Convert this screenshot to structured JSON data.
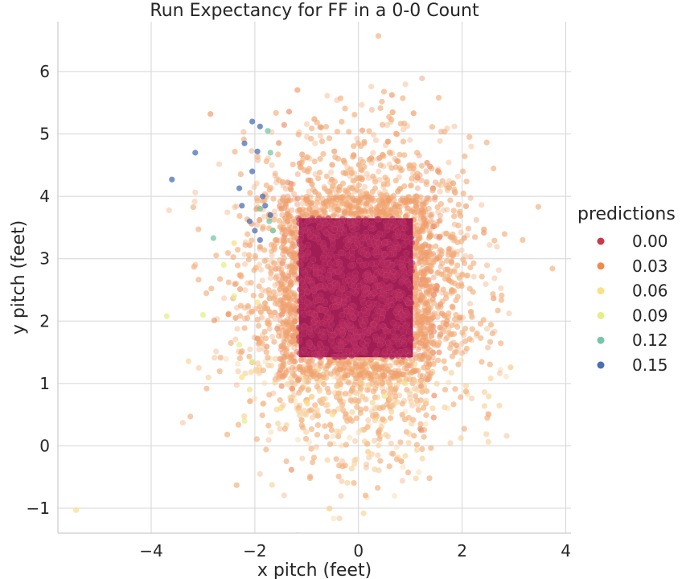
{
  "chart_data": {
    "type": "scatter",
    "title": "Run Expectancy for FF in a 0-0 Count",
    "xlabel": "x pitch (feet)",
    "ylabel": "y pitch (feet)",
    "xlim": [
      -5.8,
      4.1
    ],
    "ylim": [
      -1.4,
      6.8
    ],
    "xticks": [
      -4,
      -2,
      0,
      2,
      4
    ],
    "yticks": [
      -1,
      0,
      1,
      2,
      3,
      4,
      5,
      6
    ],
    "grid": true,
    "legend": {
      "title": "predictions",
      "placement": "right",
      "entries": [
        {
          "label": "0.00",
          "color": "#c9394a"
        },
        {
          "label": "0.03",
          "color": "#f08a4b"
        },
        {
          "label": "0.06",
          "color": "#fbe08a"
        },
        {
          "label": "0.09",
          "color": "#e3ef8a"
        },
        {
          "label": "0.12",
          "color": "#73c8a6"
        },
        {
          "label": "0.15",
          "color": "#4a6fb5"
        }
      ]
    },
    "zone_region": {
      "x": [
        -1.15,
        1.05
      ],
      "y": [
        1.42,
        3.65
      ],
      "color": "#a0164f",
      "prediction": 0.0
    },
    "cloud": {
      "x_center": 0.0,
      "y_center": 2.45,
      "x_sd": 1.05,
      "y_sd": 1.15,
      "color": "#f3b07f"
    },
    "series": [
      {
        "name": "0.15",
        "color": "#4a6fb5",
        "points": [
          [
            -3.6,
            4.27
          ],
          [
            -3.15,
            4.7
          ],
          [
            -2.05,
            5.2
          ],
          [
            -1.9,
            5.12
          ],
          [
            -2.2,
            4.85
          ],
          [
            -2.3,
            4.13
          ],
          [
            -2.05,
            4.4
          ],
          [
            -1.85,
            4.0
          ],
          [
            -2.1,
            3.6
          ],
          [
            -1.8,
            3.85
          ],
          [
            -1.95,
            4.72
          ],
          [
            -2.0,
            3.45
          ],
          [
            -1.7,
            3.7
          ],
          [
            -2.25,
            3.85
          ],
          [
            -1.9,
            3.3
          ]
        ]
      },
      {
        "name": "0.12",
        "color": "#73c8a6",
        "points": [
          [
            -2.8,
            3.33
          ],
          [
            -1.75,
            5.05
          ],
          [
            -1.72,
            3.6
          ],
          [
            -1.9,
            3.8
          ],
          [
            -1.7,
            4.7
          ],
          [
            -1.65,
            3.45
          ]
        ]
      },
      {
        "name": "0.09",
        "color": "#e3ef8a",
        "points": [
          [
            -3.7,
            2.08
          ],
          [
            -3.0,
            2.1
          ],
          [
            -2.3,
            1.62
          ],
          [
            -2.05,
            1.35
          ],
          [
            -2.4,
            2.4
          ],
          [
            -2.2,
            0.4
          ],
          [
            -2.6,
            2.9
          ]
        ]
      },
      {
        "name": "0.06",
        "color": "#fbe08a",
        "points": [
          [
            -5.45,
            -1.03
          ],
          [
            -2.1,
            0.9
          ],
          [
            -1.95,
            2.3
          ],
          [
            -2.25,
            1.1
          ],
          [
            -1.5,
            0.6
          ],
          [
            -0.5,
            0.5
          ],
          [
            0.5,
            0.8
          ],
          [
            0.9,
            1.0
          ],
          [
            -1.0,
            0.7
          ],
          [
            -2.4,
            3.25
          ]
        ]
      }
    ]
  }
}
